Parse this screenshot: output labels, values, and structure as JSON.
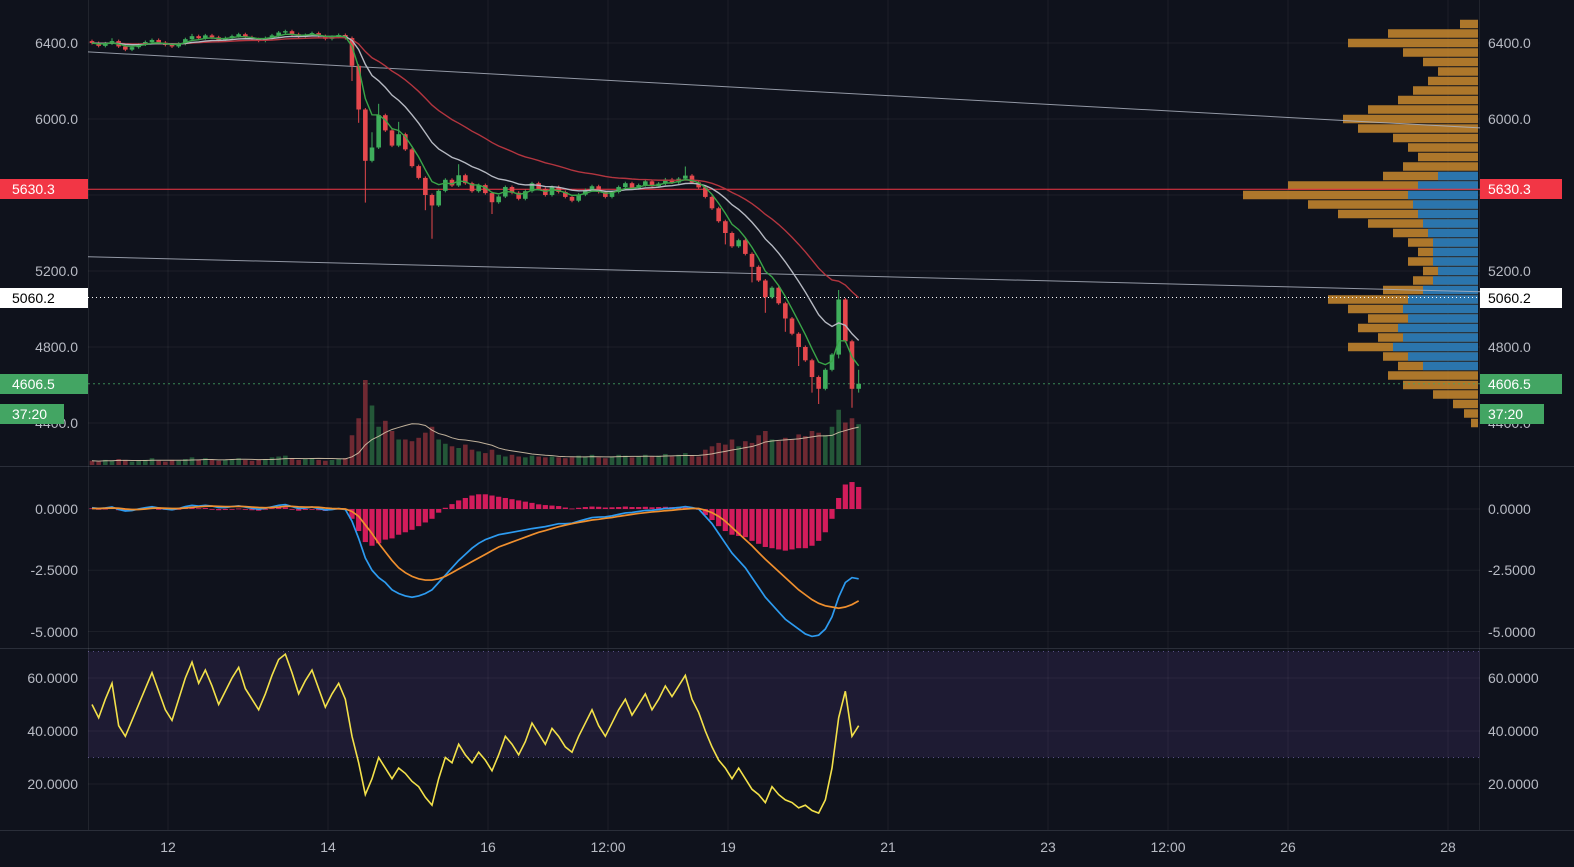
{
  "colors": {
    "background": "#0f121c",
    "grid": "rgba(255,255,255,0.055)",
    "axis_text": "#b8bbc4",
    "divider": "#2a2e39",
    "scale_border": "rgba(255,255,255,0.08)",
    "up": "#3fae5c",
    "down": "#e5484d",
    "macd_line": "#2d9bf0",
    "signal_line": "#ef8f2e",
    "histogram": "#e91e63",
    "rsi_line": "#f3e14a",
    "rsi_band_fill": "rgba(126,87,194,0.14)",
    "rsi_band_edge": "#8f7bd0",
    "profile_orange": "rgba(201,138,46,0.85)",
    "profile_blue": "rgba(29,116,187,0.9)",
    "trendline": "#aab0bd",
    "level_red": "#f23645",
    "level_white": "#ffffff",
    "last_price_line": "#43a563",
    "ema_fast": "#3aa548",
    "ema_mid": "#b6b9c2",
    "ema_slow": "#b3353f",
    "vol_ma": "rgba(222,204,176,0.85)"
  },
  "badges": {
    "level_red": {
      "text": "5630.3",
      "bg": "#f23645",
      "fg": "#ffffff",
      "price": 5630.3
    },
    "level_white": {
      "text": "5060.2",
      "bg": "#ffffff",
      "fg": "#000000",
      "price": 5060.2
    },
    "last_price": {
      "text": "4606.5",
      "bg": "#43a563",
      "fg": "#ffffff",
      "price": 4606.5
    },
    "countdown": {
      "text": "37:20",
      "bg": "#43a563",
      "fg": "#ffffff"
    }
  },
  "scales": {
    "price_ticks": [
      {
        "label": "6400.0",
        "value": 6400
      },
      {
        "label": "6000.0",
        "value": 6000
      },
      {
        "label": "5200.0",
        "value": 5200
      },
      {
        "label": "4800.0",
        "value": 4800
      },
      {
        "label": "4400.0",
        "value": 4400
      }
    ],
    "macd_ticks": [
      {
        "label": "0.0000",
        "value": 0
      },
      {
        "label": "-2.5000",
        "value": -2.5
      },
      {
        "label": "-5.0000",
        "value": -5
      }
    ],
    "rsi_ticks": [
      {
        "label": "60.0000",
        "value": 60
      },
      {
        "label": "40.0000",
        "value": 40
      },
      {
        "label": "20.0000",
        "value": 20
      }
    ],
    "time_ticks": [
      {
        "label": "12",
        "day": 12
      },
      {
        "label": "14",
        "day": 14
      },
      {
        "label": "16",
        "day": 16
      },
      {
        "label": "12:00",
        "day": 17.5
      },
      {
        "label": "19",
        "day": 19
      },
      {
        "label": "21",
        "day": 21
      },
      {
        "label": "23",
        "day": 23
      },
      {
        "label": "12:00",
        "day": 24.5
      },
      {
        "label": "26",
        "day": 26
      },
      {
        "label": "28",
        "day": 28
      }
    ]
  },
  "chart_data": {
    "type": "candlestick",
    "panels": [
      "price+volume+volume-profile",
      "macd",
      "rsi"
    ],
    "x_domain_days": [
      11,
      28.45
    ],
    "price_axis_range": [
      4174,
      6629
    ],
    "grid_prices": [
      6400,
      6000,
      5600,
      5200,
      4800,
      4400
    ],
    "levels": {
      "resistance": 5630.3,
      "dotted": 5060.2,
      "last": 4606.5
    },
    "trendlines": [
      {
        "d1": 11,
        "p1": 6353,
        "d2": 28.4,
        "p2": 5953
      },
      {
        "d1": 11,
        "p1": 5275,
        "d2": 28.4,
        "p2": 5091
      }
    ],
    "moving_average_periods": {
      "fast": 5,
      "mid": 14,
      "slow": 30
    },
    "candles": {
      "start_day": 11.0,
      "step_days": 0.0833333,
      "first_open": 6410,
      "closes": [
        6400,
        6385,
        6398,
        6410,
        6382,
        6365,
        6378,
        6392,
        6405,
        6416,
        6402,
        6390,
        6382,
        6396,
        6420,
        6436,
        6425,
        6440,
        6430,
        6416,
        6426,
        6436,
        6446,
        6430,
        6420,
        6412,
        6426,
        6440,
        6455,
        6462,
        6446,
        6432,
        6442,
        6452,
        6436,
        6422,
        6432,
        6442,
        6426,
        6280,
        6050,
        5780,
        5850,
        6020,
        5940,
        5860,
        5920,
        5840,
        5752,
        5690,
        5600,
        5545,
        5622,
        5680,
        5650,
        5704,
        5662,
        5620,
        5652,
        5610,
        5562,
        5592,
        5642,
        5612,
        5580,
        5620,
        5662,
        5632,
        5600,
        5642,
        5616,
        5590,
        5570,
        5602,
        5626,
        5646,
        5616,
        5590,
        5616,
        5642,
        5662,
        5636,
        5652,
        5672,
        5646,
        5660,
        5682,
        5666,
        5686,
        5702,
        5666,
        5640,
        5590,
        5530,
        5462,
        5400,
        5330,
        5362,
        5290,
        5222,
        5150,
        5062,
        5112,
        5030,
        4950,
        4870,
        4800,
        4730,
        4642,
        4580,
        4680,
        4760,
        5050,
        4830,
        4580,
        4606.5
      ],
      "wick_highs": {
        "3": 6425,
        "15": 6448,
        "29": 6470,
        "42": 5930,
        "43": 6080,
        "46": 5985,
        "55": 5762,
        "89": 5750,
        "112": 5100,
        "115": 4680
      },
      "wick_lows": {
        "39": 6200,
        "40": 5980,
        "41": 5560,
        "50": 5520,
        "51": 5370,
        "60": 5500,
        "95": 5340,
        "99": 5140,
        "101": 4980,
        "104": 4880,
        "106": 4700,
        "108": 4560,
        "109": 4500,
        "112": 4740,
        "114": 4480,
        "115": 4560
      }
    },
    "volume": [
      5,
      4,
      6,
      5,
      7,
      6,
      4,
      5,
      6,
      8,
      5,
      4,
      6,
      5,
      7,
      9,
      6,
      8,
      6,
      5,
      6,
      7,
      8,
      6,
      5,
      6,
      7,
      9,
      10,
      11,
      8,
      6,
      7,
      8,
      6,
      5,
      6,
      7,
      8,
      35,
      55,
      100,
      70,
      45,
      52,
      40,
      30,
      30,
      28,
      32,
      38,
      45,
      30,
      25,
      22,
      20,
      24,
      18,
      16,
      14,
      18,
      12,
      10,
      12,
      10,
      9,
      11,
      10,
      9,
      10,
      9,
      8,
      9,
      11,
      10,
      12,
      9,
      8,
      10,
      12,
      11,
      9,
      10,
      12,
      10,
      11,
      13,
      10,
      12,
      14,
      11,
      10,
      18,
      22,
      26,
      24,
      30,
      22,
      28,
      26,
      35,
      40,
      30,
      28,
      32,
      30,
      36,
      34,
      40,
      38,
      35,
      45,
      65,
      50,
      55,
      48
    ],
    "volume_profile": {
      "bin_size": 50,
      "bins_price_total_blue": [
        [
          6500,
          18,
          0
        ],
        [
          6450,
          90,
          0
        ],
        [
          6400,
          130,
          0
        ],
        [
          6350,
          75,
          0
        ],
        [
          6300,
          55,
          0
        ],
        [
          6250,
          40,
          0
        ],
        [
          6200,
          50,
          0
        ],
        [
          6150,
          65,
          0
        ],
        [
          6100,
          80,
          0
        ],
        [
          6050,
          110,
          0
        ],
        [
          6000,
          135,
          0
        ],
        [
          5950,
          120,
          0
        ],
        [
          5900,
          85,
          0
        ],
        [
          5850,
          70,
          0
        ],
        [
          5800,
          60,
          0
        ],
        [
          5750,
          75,
          0
        ],
        [
          5700,
          95,
          40
        ],
        [
          5650,
          190,
          60
        ],
        [
          5600,
          235,
          70
        ],
        [
          5550,
          170,
          65
        ],
        [
          5500,
          140,
          60
        ],
        [
          5450,
          110,
          55
        ],
        [
          5400,
          85,
          50
        ],
        [
          5350,
          70,
          45
        ],
        [
          5300,
          60,
          45
        ],
        [
          5250,
          70,
          45
        ],
        [
          5200,
          55,
          40
        ],
        [
          5150,
          65,
          45
        ],
        [
          5100,
          95,
          55
        ],
        [
          5050,
          150,
          70
        ],
        [
          5000,
          130,
          75
        ],
        [
          4950,
          110,
          70
        ],
        [
          4900,
          120,
          80
        ],
        [
          4850,
          100,
          75
        ],
        [
          4800,
          130,
          85
        ],
        [
          4750,
          95,
          70
        ],
        [
          4700,
          80,
          55
        ],
        [
          4650,
          90,
          0
        ],
        [
          4600,
          75,
          0
        ],
        [
          4550,
          45,
          0
        ],
        [
          4500,
          25,
          0
        ],
        [
          4450,
          14,
          0
        ],
        [
          4400,
          7,
          0
        ]
      ]
    },
    "macd": {
      "axis_range": [
        -5.8,
        1.6
      ],
      "line": [
        0.05,
        0.02,
        0.04,
        0.08,
        -0.02,
        -0.08,
        -0.06,
        0,
        0.05,
        0.09,
        0.04,
        0,
        -0.03,
        0.02,
        0.1,
        0.15,
        0.12,
        0.15,
        0.12,
        0.06,
        0.06,
        0.1,
        0.13,
        0.08,
        0.03,
        -0.01,
        0.03,
        0.09,
        0.15,
        0.18,
        0.1,
        0.02,
        0.04,
        0.08,
        0.02,
        -0.04,
        -0.02,
        0.02,
        -0.02,
        -0.5,
        -1.2,
        -2.0,
        -2.5,
        -2.8,
        -3.0,
        -3.3,
        -3.45,
        -3.55,
        -3.6,
        -3.55,
        -3.45,
        -3.3,
        -3.0,
        -2.7,
        -2.4,
        -2.1,
        -1.85,
        -1.6,
        -1.4,
        -1.25,
        -1.15,
        -1.05,
        -1.0,
        -0.95,
        -0.9,
        -0.85,
        -0.8,
        -0.76,
        -0.72,
        -0.66,
        -0.6,
        -0.6,
        -0.58,
        -0.5,
        -0.42,
        -0.35,
        -0.33,
        -0.32,
        -0.28,
        -0.22,
        -0.16,
        -0.14,
        -0.1,
        -0.06,
        -0.05,
        -0.02,
        0.02,
        0.03,
        0.06,
        0.1,
        0.06,
        0,
        -0.3,
        -0.6,
        -1.0,
        -1.4,
        -1.8,
        -2.1,
        -2.4,
        -2.8,
        -3.2,
        -3.6,
        -3.9,
        -4.2,
        -4.5,
        -4.7,
        -4.9,
        -5.1,
        -5.2,
        -5.15,
        -4.9,
        -4.4,
        -3.6,
        -3.0,
        -2.8,
        -2.85
      ],
      "signal": [
        0.02,
        0.02,
        0.03,
        0.04,
        0.03,
        0,
        -0.02,
        -0.02,
        0,
        0.03,
        0.04,
        0.03,
        0.02,
        0.02,
        0.04,
        0.07,
        0.09,
        0.11,
        0.12,
        0.11,
        0.1,
        0.1,
        0.11,
        0.1,
        0.08,
        0.06,
        0.05,
        0.06,
        0.08,
        0.11,
        0.11,
        0.09,
        0.08,
        0.08,
        0.07,
        0.04,
        0.02,
        0.01,
        0,
        -0.1,
        -0.3,
        -0.65,
        -1.0,
        -1.4,
        -1.75,
        -2.1,
        -2.4,
        -2.6,
        -2.75,
        -2.85,
        -2.9,
        -2.9,
        -2.85,
        -2.75,
        -2.6,
        -2.45,
        -2.3,
        -2.15,
        -2.0,
        -1.85,
        -1.7,
        -1.55,
        -1.45,
        -1.35,
        -1.25,
        -1.15,
        -1.05,
        -0.95,
        -0.88,
        -0.8,
        -0.72,
        -0.66,
        -0.6,
        -0.55,
        -0.5,
        -0.45,
        -0.42,
        -0.38,
        -0.35,
        -0.3,
        -0.26,
        -0.22,
        -0.18,
        -0.15,
        -0.12,
        -0.1,
        -0.07,
        -0.05,
        -0.02,
        0,
        0.02,
        0.02,
        -0.05,
        -0.15,
        -0.3,
        -0.5,
        -0.75,
        -1.0,
        -1.25,
        -1.5,
        -1.78,
        -2.05,
        -2.3,
        -2.55,
        -2.8,
        -3.05,
        -3.3,
        -3.5,
        -3.7,
        -3.85,
        -3.95,
        -4.0,
        -4.05,
        -4.0,
        -3.9,
        -3.75
      ]
    },
    "rsi": {
      "band": [
        30,
        70
      ],
      "values": [
        50,
        45,
        52,
        58,
        42,
        38,
        44,
        50,
        56,
        62,
        55,
        48,
        44,
        52,
        60,
        66,
        58,
        63,
        57,
        50,
        55,
        60,
        64,
        56,
        52,
        48,
        54,
        61,
        67,
        69,
        62,
        54,
        59,
        63,
        56,
        49,
        54,
        58,
        52,
        38,
        28,
        16,
        22,
        30,
        26,
        22,
        26,
        24,
        21,
        19,
        15,
        12,
        22,
        30,
        28,
        35,
        31,
        28,
        32,
        29,
        25,
        31,
        38,
        35,
        31,
        36,
        43,
        39,
        35,
        41,
        38,
        34,
        32,
        38,
        43,
        48,
        42,
        38,
        43,
        48,
        52,
        46,
        50,
        54,
        48,
        52,
        57,
        53,
        57,
        61,
        52,
        47,
        40,
        34,
        29,
        26,
        22,
        26,
        22,
        18,
        16,
        13,
        19,
        16,
        14,
        13,
        11,
        12,
        10,
        9,
        14,
        26,
        45,
        55,
        38,
        42
      ]
    }
  }
}
